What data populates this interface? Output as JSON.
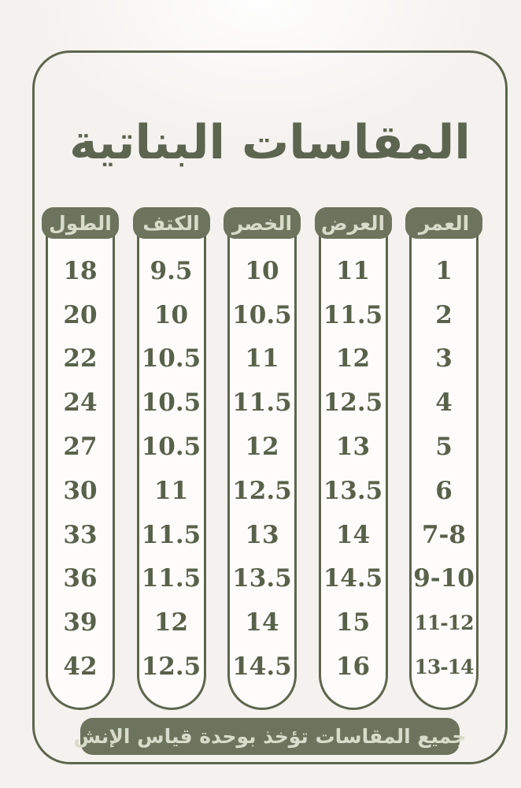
{
  "title": "المقاسات البناتية",
  "footer_note": "جميع المقاسات تؤخذ بوحدة قياس الإنش",
  "columns": [
    {
      "id": "age",
      "header": "العمر",
      "values": [
        "1",
        "2",
        "3",
        "4",
        "5",
        "6",
        "7-8",
        "9-10",
        "11-12",
        "13-14"
      ]
    },
    {
      "id": "width",
      "header": "العرض",
      "values": [
        "11",
        "11.5",
        "12",
        "12.5",
        "13",
        "13.5",
        "14",
        "14.5",
        "15",
        "16"
      ]
    },
    {
      "id": "waist",
      "header": "الخصر",
      "values": [
        "10",
        "10.5",
        "11",
        "11.5",
        "12",
        "12.5",
        "13",
        "13.5",
        "14",
        "14.5"
      ]
    },
    {
      "id": "shoulder",
      "header": "الكتف",
      "values": [
        "9.5",
        "10",
        "10.5",
        "10.5",
        "10.5",
        "11",
        "11.5",
        "11.5",
        "12",
        "12.5"
      ]
    },
    {
      "id": "length",
      "header": "الطول",
      "values": [
        "18",
        "20",
        "22",
        "24",
        "27",
        "30",
        "33",
        "36",
        "39",
        "42"
      ]
    }
  ],
  "colors": {
    "olive": "#6d735c",
    "olive-dark": "#5e654e",
    "title-color": "#5d6450",
    "number-color": "#59614b",
    "pill-text": "#d9dcca",
    "column-fill": "#fdfcfa",
    "page-bg": "#f4f2ee"
  },
  "chart_data": {
    "type": "table",
    "title": "المقاسات البناتية",
    "columns_right_to_left": [
      "العمر",
      "العرض",
      "الخصر",
      "الكتف",
      "الطول"
    ],
    "rows": [
      [
        "1",
        "11",
        "10",
        "9.5",
        "18"
      ],
      [
        "2",
        "11.5",
        "10.5",
        "10",
        "20"
      ],
      [
        "3",
        "12",
        "11",
        "10.5",
        "22"
      ],
      [
        "4",
        "12.5",
        "11.5",
        "10.5",
        "24"
      ],
      [
        "5",
        "13",
        "12",
        "10.5",
        "27"
      ],
      [
        "6",
        "13.5",
        "12.5",
        "11",
        "30"
      ],
      [
        "7-8",
        "14",
        "13",
        "11.5",
        "33"
      ],
      [
        "9-10",
        "14.5",
        "13.5",
        "11.5",
        "36"
      ],
      [
        "11-12",
        "15",
        "14",
        "12",
        "39"
      ],
      [
        "13-14",
        "16",
        "14.5",
        "12.5",
        "42"
      ]
    ],
    "note": "جميع المقاسات تؤخذ بوحدة قياس الإنش"
  }
}
